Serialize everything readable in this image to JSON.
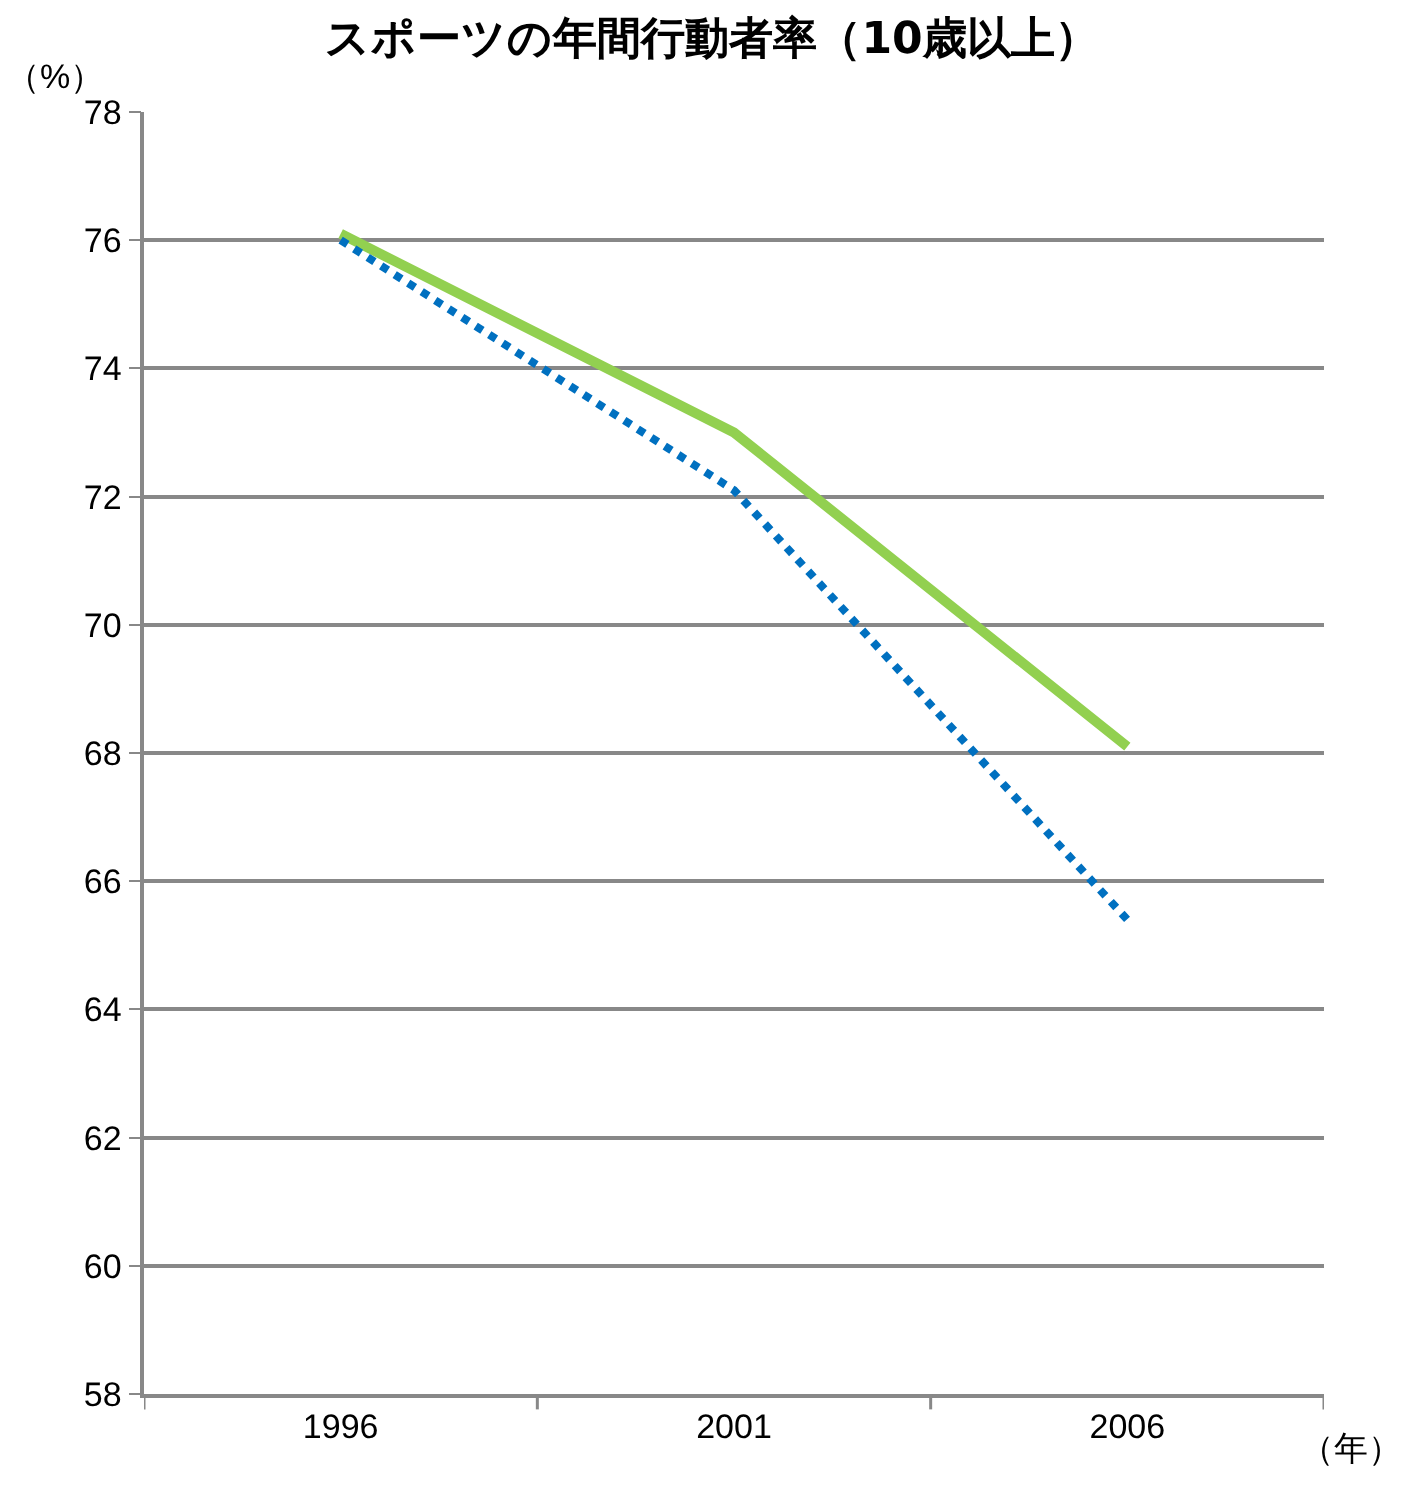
{
  "chart_data": {
    "type": "line",
    "title": "スポーツの年間行動者率（10歳以上）",
    "ylabel": "（%）",
    "xlabel": "（年）",
    "categories": [
      "1996",
      "2001",
      "2006"
    ],
    "series": [
      {
        "color": "#92d050",
        "values": [
          76.1,
          73.0,
          68.1
        ],
        "line_style": "solid"
      },
      {
        "color": "#0070c0",
        "values": [
          76.0,
          72.1,
          65.4
        ],
        "line_style": "dotted"
      }
    ],
    "ylim": [
      58,
      78
    ],
    "yticks": [
      58,
      60,
      62,
      64,
      66,
      68,
      70,
      72,
      74,
      76,
      78
    ],
    "grid": "y",
    "marker": "none"
  }
}
